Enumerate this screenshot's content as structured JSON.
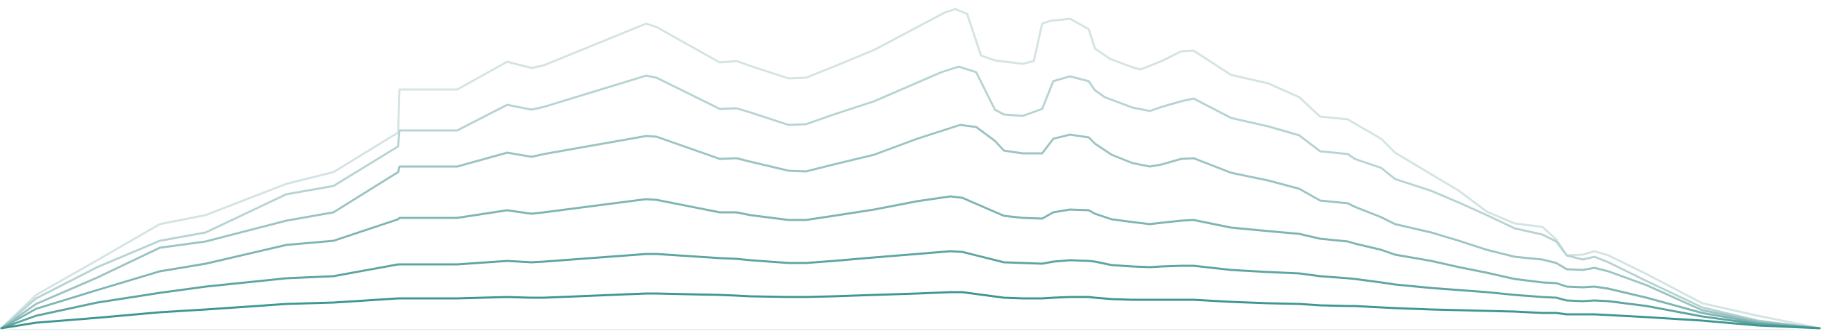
{
  "graphic": {
    "layers": [
      {
        "id": "layer-1",
        "color": "#d4e3e3"
      },
      {
        "id": "layer-2",
        "color": "#b8d3d3"
      },
      {
        "id": "layer-3",
        "color": "#9cc4c3"
      },
      {
        "id": "layer-4",
        "color": "#7fb5b3"
      },
      {
        "id": "layer-5",
        "color": "#5ea5a2"
      },
      {
        "id": "layer-6",
        "color": "#3f9792"
      }
    ]
  }
}
